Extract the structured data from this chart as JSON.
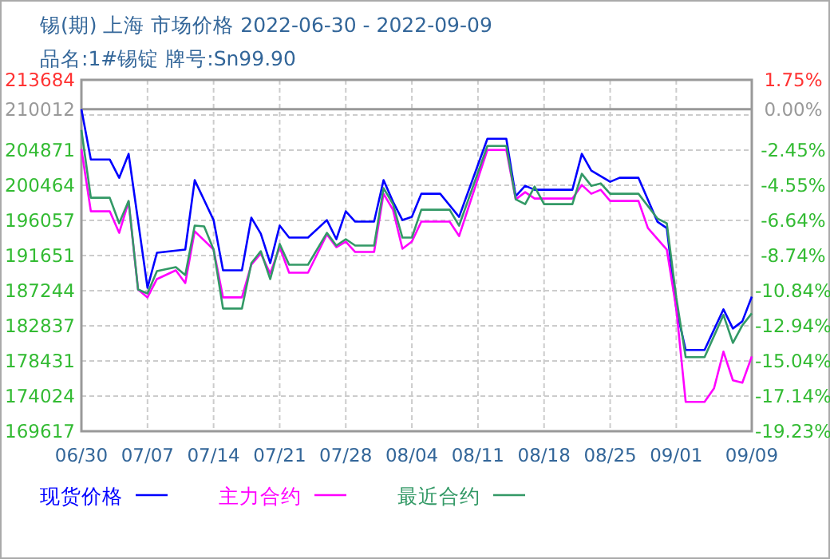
{
  "chart_data": {
    "type": "line",
    "title": "锡(期) 上海 市场价格 2022-06-30 - 2022-09-09",
    "subtitle": "品名:1#锡锭 牌号:Sn99.90",
    "xlim": [
      "2022-06-30",
      "2022-09-09"
    ],
    "xticks": [
      {
        "value": "2022-06-30",
        "label": "06/30"
      },
      {
        "value": "2022-07-07",
        "label": "07/07"
      },
      {
        "value": "2022-07-14",
        "label": "07/14"
      },
      {
        "value": "2022-07-21",
        "label": "07/21"
      },
      {
        "value": "2022-07-28",
        "label": "07/28"
      },
      {
        "value": "2022-08-04",
        "label": "08/04"
      },
      {
        "value": "2022-08-11",
        "label": "08/11"
      },
      {
        "value": "2022-08-18",
        "label": "08/18"
      },
      {
        "value": "2022-08-25",
        "label": "08/25"
      },
      {
        "value": "2022-09-01",
        "label": "09/01"
      },
      {
        "value": "2022-09-09",
        "label": "09/09"
      }
    ],
    "ylim": [
      169617,
      213684
    ],
    "yticks": [
      169617,
      174024,
      178431,
      182837,
      187244,
      191651,
      196057,
      200464,
      204871,
      {
        "value": 209277,
        "label": null
      },
      213684
    ],
    "y2lim": [
      -19.23,
      1.75
    ],
    "y2ticks": [
      {
        "value": -19.23,
        "label": "-19.23%"
      },
      {
        "value": -17.14,
        "label": "-17.14%"
      },
      {
        "value": -15.04,
        "label": "-15.04%"
      },
      {
        "value": -12.94,
        "label": "-12.94%"
      },
      {
        "value": -10.84,
        "label": "-10.84%"
      },
      {
        "value": -8.74,
        "label": "-8.74%"
      },
      {
        "value": -6.64,
        "label": "-6.64%"
      },
      {
        "value": -4.55,
        "label": "-4.55%"
      },
      {
        "value": -2.45,
        "label": "-2.45%"
      },
      {
        "value": 0,
        "label": "0.00%"
      },
      {
        "value": 1.75,
        "label": "1.75%"
      }
    ],
    "ref_lines": [
      {
        "axis": "y",
        "value": 210012,
        "label": "210012",
        "color": "#999999"
      }
    ],
    "grid": true,
    "legend": "bottom",
    "series": [
      {
        "name": "现货价格",
        "color": "#0000ff",
        "x": [
          "2022-06-30",
          "2022-07-01",
          "2022-07-03",
          "2022-07-04",
          "2022-07-05",
          "2022-07-07",
          "2022-07-08",
          "2022-07-11",
          "2022-07-12",
          "2022-07-14",
          "2022-07-15",
          "2022-07-17",
          "2022-07-18",
          "2022-07-19",
          "2022-07-20",
          "2022-07-21",
          "2022-07-22",
          "2022-07-24",
          "2022-07-26",
          "2022-07-27",
          "2022-07-28",
          "2022-07-29",
          "2022-07-31",
          "2022-08-01",
          "2022-08-02",
          "2022-08-03",
          "2022-08-04",
          "2022-08-05",
          "2022-08-07",
          "2022-08-09",
          "2022-08-12",
          "2022-08-14",
          "2022-08-15",
          "2022-08-16",
          "2022-08-17",
          "2022-08-21",
          "2022-08-22",
          "2022-08-23",
          "2022-08-25",
          "2022-08-26",
          "2022-08-28",
          "2022-08-30",
          "2022-08-31",
          "2022-09-01",
          "2022-09-02",
          "2022-09-04",
          "2022-09-06",
          "2022-09-07",
          "2022-09-08",
          "2022-09-09"
        ],
        "values": [
          210000,
          203700,
          203700,
          201400,
          204400,
          187600,
          192000,
          192400,
          201100,
          196100,
          189800,
          189800,
          196400,
          194400,
          190700,
          195400,
          193900,
          193900,
          196100,
          193700,
          197200,
          195900,
          195900,
          201100,
          198400,
          196100,
          196500,
          199400,
          199400,
          196500,
          206300,
          206300,
          199100,
          200400,
          199900,
          199900,
          204400,
          202300,
          200900,
          201400,
          201400,
          195900,
          195100,
          185000,
          179800,
          179800,
          184900,
          182500,
          183400,
          186500
        ]
      },
      {
        "name": "主力合约",
        "color": "#ff00ff",
        "x": [
          "2022-06-30",
          "2022-07-01",
          "2022-07-03",
          "2022-07-04",
          "2022-07-05",
          "2022-07-06",
          "2022-07-07",
          "2022-07-08",
          "2022-07-10",
          "2022-07-11",
          "2022-07-12",
          "2022-07-14",
          "2022-07-15",
          "2022-07-17",
          "2022-07-18",
          "2022-07-19",
          "2022-07-20",
          "2022-07-21",
          "2022-07-22",
          "2022-07-24",
          "2022-07-26",
          "2022-07-27",
          "2022-07-28",
          "2022-07-29",
          "2022-07-31",
          "2022-08-01",
          "2022-08-02",
          "2022-08-03",
          "2022-08-04",
          "2022-08-05",
          "2022-08-08",
          "2022-08-09",
          "2022-08-12",
          "2022-08-14",
          "2022-08-15",
          "2022-08-16",
          "2022-08-17",
          "2022-08-21",
          "2022-08-22",
          "2022-08-23",
          "2022-08-24",
          "2022-08-25",
          "2022-08-28",
          "2022-08-29",
          "2022-08-31",
          "2022-09-01",
          "2022-09-02",
          "2022-09-04",
          "2022-09-05",
          "2022-09-06",
          "2022-09-07",
          "2022-09-08",
          "2022-09-09"
        ],
        "values": [
          205000,
          197200,
          197200,
          194500,
          198400,
          187400,
          186400,
          188700,
          189800,
          188200,
          194700,
          192400,
          186400,
          186400,
          190500,
          191900,
          189400,
          192700,
          189500,
          189500,
          194300,
          192700,
          193400,
          192100,
          192100,
          199400,
          197400,
          192500,
          193400,
          195900,
          195900,
          194100,
          204900,
          204900,
          198700,
          199600,
          198800,
          198800,
          200500,
          199400,
          199900,
          198500,
          198500,
          195100,
          192400,
          185000,
          173300,
          173300,
          175000,
          179600,
          176000,
          175700,
          179000
        ]
      },
      {
        "name": "最近合约",
        "color": "#339966",
        "x": [
          "2022-06-30",
          "2022-07-01",
          "2022-07-03",
          "2022-07-04",
          "2022-07-05",
          "2022-07-06",
          "2022-07-07",
          "2022-07-08",
          "2022-07-10",
          "2022-07-11",
          "2022-07-12",
          "2022-07-13",
          "2022-07-14",
          "2022-07-15",
          "2022-07-17",
          "2022-07-18",
          "2022-07-19",
          "2022-07-20",
          "2022-07-21",
          "2022-07-22",
          "2022-07-24",
          "2022-07-26",
          "2022-07-27",
          "2022-07-28",
          "2022-07-29",
          "2022-07-31",
          "2022-08-01",
          "2022-08-02",
          "2022-08-03",
          "2022-08-04",
          "2022-08-05",
          "2022-08-08",
          "2022-08-09",
          "2022-08-12",
          "2022-08-14",
          "2022-08-15",
          "2022-08-16",
          "2022-08-17",
          "2022-08-18",
          "2022-08-21",
          "2022-08-22",
          "2022-08-23",
          "2022-08-24",
          "2022-08-25",
          "2022-08-28",
          "2022-08-30",
          "2022-08-31",
          "2022-09-01",
          "2022-09-02",
          "2022-09-04",
          "2022-09-06",
          "2022-09-07",
          "2022-09-08",
          "2022-09-09"
        ],
        "values": [
          207400,
          198900,
          198900,
          195700,
          198500,
          187400,
          186900,
          189700,
          190200,
          189200,
          195400,
          195300,
          192400,
          185000,
          185000,
          190700,
          192200,
          188700,
          193100,
          190500,
          190500,
          194500,
          192900,
          193700,
          192900,
          192900,
          200100,
          198100,
          193900,
          193900,
          197400,
          197400,
          195400,
          205400,
          205400,
          198700,
          198100,
          200300,
          198100,
          198100,
          201900,
          200400,
          200700,
          199400,
          199400,
          196300,
          195700,
          186400,
          178900,
          178900,
          184200,
          180700,
          182900,
          184400
        ]
      }
    ]
  }
}
